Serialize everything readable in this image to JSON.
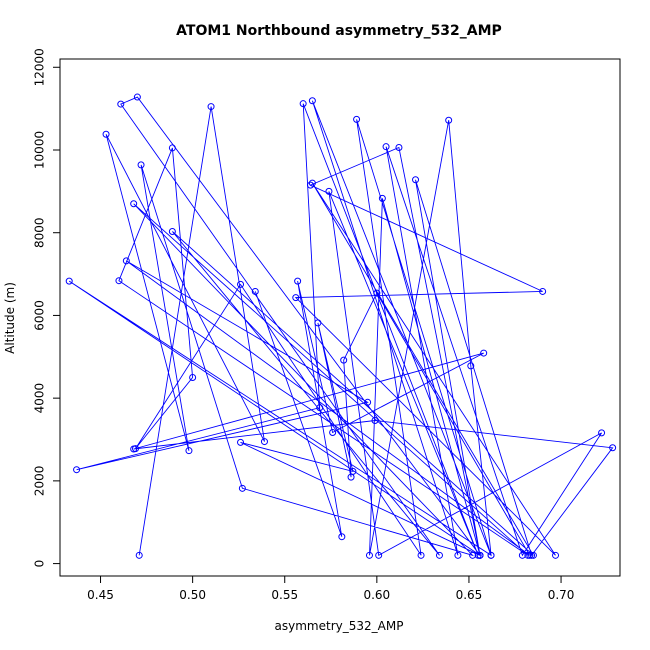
{
  "chart_data": {
    "type": "line",
    "title": "ATOM1 Northbound asymmetry_532_AMP",
    "xlabel": "asymmetry_532_AMP",
    "ylabel": "Altitude (m)",
    "xlim": [
      0.428,
      0.732
    ],
    "ylim": [
      -300,
      12200
    ],
    "xticks": [
      0.45,
      0.5,
      0.55,
      0.6,
      0.65,
      0.7
    ],
    "xtick_labels": [
      "0.45",
      "0.50",
      "0.55",
      "0.60",
      "0.65",
      "0.70"
    ],
    "yticks": [
      0,
      2000,
      4000,
      6000,
      8000,
      10000,
      12000
    ],
    "ytick_labels": [
      "0",
      "2000",
      "4000",
      "6000",
      "8000",
      "10000",
      "12000"
    ],
    "grid": false,
    "legend": "none",
    "series": [
      {
        "color": "#0000ff",
        "marker": "open-circle",
        "points": [
          {
            "x": 0.471,
            "y": 200
          },
          {
            "x": 0.51,
            "y": 11050
          },
          {
            "x": 0.539,
            "y": 2950
          },
          {
            "x": 0.453,
            "y": 10380
          },
          {
            "x": 0.498,
            "y": 2730
          },
          {
            "x": 0.472,
            "y": 9640
          },
          {
            "x": 0.527,
            "y": 1820
          },
          {
            "x": 0.652,
            "y": 200
          },
          {
            "x": 0.468,
            "y": 8700
          },
          {
            "x": 0.682,
            "y": 200
          },
          {
            "x": 0.46,
            "y": 6840
          },
          {
            "x": 0.489,
            "y": 10050
          },
          {
            "x": 0.5,
            "y": 4500
          },
          {
            "x": 0.469,
            "y": 2780
          },
          {
            "x": 0.526,
            "y": 6750
          },
          {
            "x": 0.624,
            "y": 200
          },
          {
            "x": 0.589,
            "y": 10740
          },
          {
            "x": 0.662,
            "y": 200
          },
          {
            "x": 0.433,
            "y": 6830
          },
          {
            "x": 0.656,
            "y": 200
          },
          {
            "x": 0.612,
            "y": 10060
          },
          {
            "x": 0.564,
            "y": 9150
          },
          {
            "x": 0.69,
            "y": 6580
          },
          {
            "x": 0.556,
            "y": 6430
          },
          {
            "x": 0.697,
            "y": 200
          },
          {
            "x": 0.565,
            "y": 9200
          },
          {
            "x": 0.685,
            "y": 200
          },
          {
            "x": 0.489,
            "y": 8030
          },
          {
            "x": 0.634,
            "y": 200
          },
          {
            "x": 0.461,
            "y": 11110
          },
          {
            "x": 0.47,
            "y": 11280
          },
          {
            "x": 0.656,
            "y": 200
          },
          {
            "x": 0.603,
            "y": 8830
          },
          {
            "x": 0.596,
            "y": 200
          },
          {
            "x": 0.639,
            "y": 10720
          },
          {
            "x": 0.651,
            "y": 4780
          },
          {
            "x": 0.662,
            "y": 200
          },
          {
            "x": 0.565,
            "y": 11190
          },
          {
            "x": 0.644,
            "y": 200
          },
          {
            "x": 0.605,
            "y": 10080
          },
          {
            "x": 0.679,
            "y": 200
          },
          {
            "x": 0.722,
            "y": 3160
          },
          {
            "x": 0.601,
            "y": 200
          },
          {
            "x": 0.574,
            "y": 9000
          },
          {
            "x": 0.655,
            "y": 200
          },
          {
            "x": 0.56,
            "y": 11120
          },
          {
            "x": 0.569,
            "y": 3770
          },
          {
            "x": 0.437,
            "y": 2270
          },
          {
            "x": 0.595,
            "y": 3900
          },
          {
            "x": 0.464,
            "y": 7320
          },
          {
            "x": 0.683,
            "y": 200
          },
          {
            "x": 0.6,
            "y": 6540
          },
          {
            "x": 0.582,
            "y": 4920
          },
          {
            "x": 0.586,
            "y": 2090
          },
          {
            "x": 0.568,
            "y": 5820
          },
          {
            "x": 0.587,
            "y": 2230
          },
          {
            "x": 0.526,
            "y": 2930
          },
          {
            "x": 0.656,
            "y": 200
          },
          {
            "x": 0.621,
            "y": 9280
          },
          {
            "x": 0.684,
            "y": 200
          },
          {
            "x": 0.728,
            "y": 2800
          },
          {
            "x": 0.599,
            "y": 3460
          },
          {
            "x": 0.468,
            "y": 2770
          },
          {
            "x": 0.658,
            "y": 5090
          },
          {
            "x": 0.576,
            "y": 3170
          },
          {
            "x": 0.557,
            "y": 6830
          },
          {
            "x": 0.581,
            "y": 650
          },
          {
            "x": 0.534,
            "y": 6580
          }
        ]
      }
    ]
  }
}
